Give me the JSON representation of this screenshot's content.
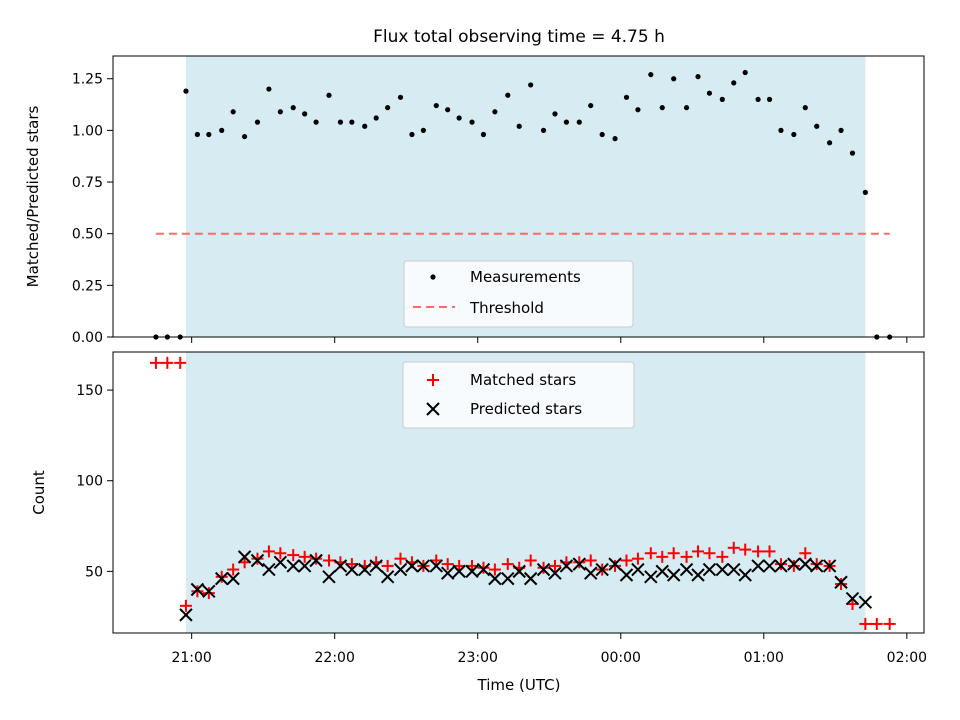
{
  "chart_data": {
    "type": "scatter",
    "title": "Flux total observing time = 4.75 h",
    "xlabel": "Time (UTC)",
    "x_range_hours": [
      20.45,
      26.12
    ],
    "x_ticks": [
      {
        "value": 21,
        "label": "21:00"
      },
      {
        "value": 22,
        "label": "22:00"
      },
      {
        "value": 23,
        "label": "23:00"
      },
      {
        "value": 24,
        "label": "00:00"
      },
      {
        "value": 25,
        "label": "01:00"
      },
      {
        "value": 26,
        "label": "02:00"
      }
    ],
    "observing_span_hours": [
      20.96,
      25.71
    ],
    "shade_color": "#add8e6",
    "top_panel": {
      "ylabel": "Matched/Predicted stars",
      "ylim": [
        0,
        1.36
      ],
      "yticks": [
        "0.00",
        "0.25",
        "0.50",
        "0.75",
        "1.00",
        "1.25"
      ],
      "threshold": {
        "value": 0.5,
        "x_range": [
          20.75,
          25.88
        ],
        "color": "#ff6b6b"
      },
      "legend": {
        "placement": "lower-center",
        "entries": [
          "Measurements",
          "Threshold"
        ]
      },
      "x": [
        20.75,
        20.83,
        20.92,
        20.96,
        21.04,
        21.12,
        21.21,
        21.29,
        21.37,
        21.46,
        21.54,
        21.62,
        21.71,
        21.79,
        21.87,
        21.96,
        22.04,
        22.12,
        22.21,
        22.29,
        22.37,
        22.46,
        22.54,
        22.62,
        22.71,
        22.79,
        22.87,
        22.96,
        23.04,
        23.12,
        23.21,
        23.29,
        23.37,
        23.46,
        23.54,
        23.62,
        23.71,
        23.79,
        23.87,
        23.96,
        24.04,
        24.12,
        24.21,
        24.29,
        24.37,
        24.46,
        24.54,
        24.62,
        24.71,
        24.79,
        24.87,
        24.96,
        25.04,
        25.12,
        25.21,
        25.29,
        25.37,
        25.46,
        25.54,
        25.62,
        25.71,
        25.79,
        25.88
      ],
      "y": [
        0.0,
        0.0,
        0.0,
        1.19,
        0.98,
        0.98,
        1.0,
        1.09,
        0.97,
        1.04,
        1.2,
        1.09,
        1.11,
        1.08,
        1.04,
        1.17,
        1.04,
        1.04,
        1.02,
        1.06,
        1.11,
        1.16,
        0.98,
        1.0,
        1.12,
        1.1,
        1.06,
        1.04,
        0.98,
        1.09,
        1.17,
        1.02,
        1.22,
        1.0,
        1.08,
        1.04,
        1.04,
        1.12,
        0.98,
        0.96,
        1.16,
        1.1,
        1.27,
        1.11,
        1.25,
        1.11,
        1.26,
        1.18,
        1.15,
        1.23,
        1.28,
        1.15,
        1.15,
        1.0,
        0.98,
        1.11,
        1.02,
        0.94,
        1.0,
        0.89,
        0.7,
        0.0,
        0.0
      ]
    },
    "bottom_panel": {
      "ylabel": "Count",
      "ylim": [
        16,
        171
      ],
      "yticks": [
        "50",
        "100",
        "150"
      ],
      "legend": {
        "placement": "upper-center",
        "entries": [
          "Matched stars",
          "Predicted stars"
        ]
      },
      "matched_color": "#ff0000",
      "predicted_color": "#000000",
      "matched": {
        "x": [
          20.75,
          20.83,
          20.92,
          20.96,
          21.04,
          21.12,
          21.21,
          21.29,
          21.37,
          21.46,
          21.54,
          21.62,
          21.71,
          21.79,
          21.87,
          21.96,
          22.04,
          22.12,
          22.21,
          22.29,
          22.37,
          22.46,
          22.54,
          22.62,
          22.71,
          22.79,
          22.87,
          22.96,
          23.04,
          23.12,
          23.21,
          23.29,
          23.37,
          23.46,
          23.54,
          23.62,
          23.71,
          23.79,
          23.87,
          23.96,
          24.04,
          24.12,
          24.21,
          24.29,
          24.37,
          24.46,
          24.54,
          24.62,
          24.71,
          24.79,
          24.87,
          24.96,
          25.04,
          25.12,
          25.21,
          25.29,
          25.37,
          25.46,
          25.54,
          25.62,
          25.71,
          25.79,
          25.88
        ],
        "y": [
          165,
          165,
          165,
          31,
          39,
          38,
          47,
          51,
          55,
          57,
          61,
          60,
          59,
          58,
          57,
          56,
          55,
          54,
          53,
          55,
          53,
          57,
          55,
          53,
          56,
          54,
          53,
          53,
          52,
          51,
          54,
          52,
          56,
          52,
          53,
          55,
          55,
          56,
          51,
          53,
          56,
          57,
          60,
          58,
          60,
          58,
          61,
          60,
          58,
          63,
          62,
          61,
          61,
          54,
          53,
          60,
          54,
          53,
          43,
          32,
          21,
          21,
          21
        ]
      },
      "predicted": {
        "x": [
          20.96,
          21.04,
          21.12,
          21.21,
          21.29,
          21.37,
          21.46,
          21.54,
          21.62,
          21.71,
          21.79,
          21.87,
          21.96,
          22.04,
          22.12,
          22.21,
          22.29,
          22.37,
          22.46,
          22.54,
          22.62,
          22.71,
          22.79,
          22.87,
          22.96,
          23.04,
          23.12,
          23.21,
          23.29,
          23.37,
          23.46,
          23.54,
          23.62,
          23.71,
          23.79,
          23.87,
          23.96,
          24.04,
          24.12,
          24.21,
          24.29,
          24.37,
          24.46,
          24.54,
          24.62,
          24.71,
          24.79,
          24.87,
          24.96,
          25.04,
          25.12,
          25.21,
          25.29,
          25.37,
          25.46,
          25.54,
          25.62,
          25.71
        ],
        "y": [
          26,
          40,
          39,
          46,
          46,
          58,
          56,
          51,
          55,
          53,
          53,
          56,
          47,
          53,
          51,
          51,
          53,
          47,
          51,
          53,
          53,
          53,
          49,
          50,
          50,
          51,
          46,
          46,
          50,
          46,
          51,
          49,
          53,
          54,
          49,
          51,
          54,
          48,
          51,
          47,
          50,
          48,
          51,
          48,
          51,
          51,
          51,
          48,
          53,
          53,
          53,
          54,
          54,
          53,
          53,
          44,
          35,
          33
        ]
      }
    }
  }
}
